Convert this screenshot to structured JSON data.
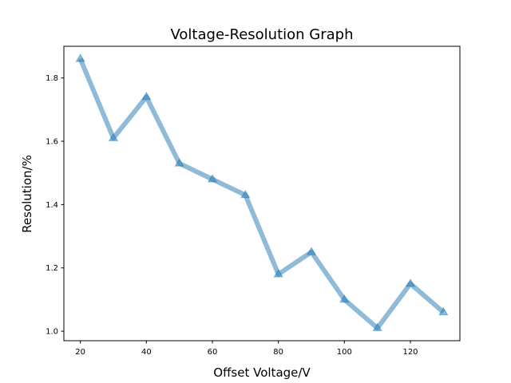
{
  "chart_data": {
    "type": "line",
    "title": "Voltage-Resolution Graph",
    "xlabel": "Offset Voltage/V",
    "ylabel": "Resolution/%",
    "x": [
      20,
      30,
      40,
      50,
      60,
      70,
      80,
      90,
      100,
      110,
      120,
      130
    ],
    "series": [
      {
        "values": [
          1.86,
          1.61,
          1.74,
          1.53,
          1.48,
          1.43,
          1.18,
          1.25,
          1.1,
          1.01,
          1.15,
          1.06
        ],
        "color": "#1f77b4",
        "marker": "triangle-up"
      }
    ],
    "xlim": [
      15,
      135
    ],
    "ylim": [
      0.97,
      1.9
    ],
    "xticks": [
      20,
      40,
      60,
      80,
      100,
      120
    ],
    "yticks": [
      1.0,
      1.2,
      1.4,
      1.6,
      1.8
    ],
    "ytick_labels": [
      "1.0",
      "1.2",
      "1.4",
      "1.6",
      "1.8"
    ],
    "grid": false,
    "legend": "none"
  }
}
